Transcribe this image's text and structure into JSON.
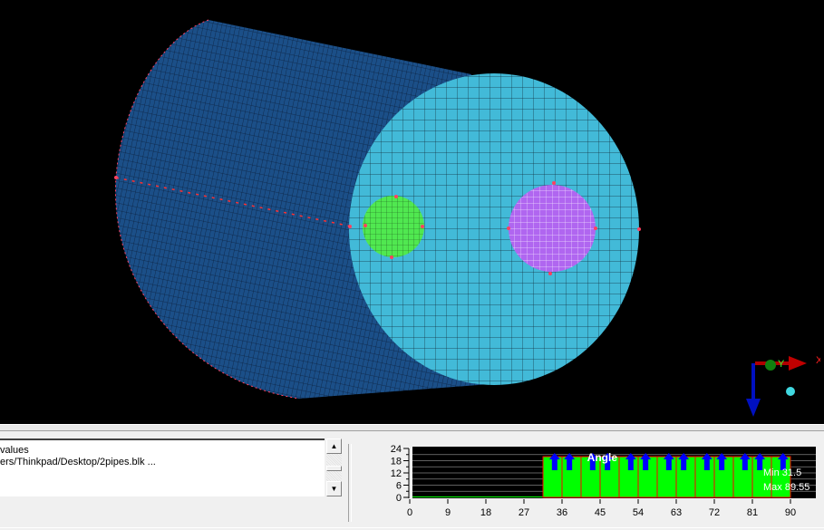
{
  "log": {
    "lines": [
      "values",
      "ers/Thinkpad/Desktop/2pipes.blk ..."
    ]
  },
  "scrollbar": {
    "up": "▲",
    "down": "▼"
  },
  "axes_triad": {
    "x_label": "X",
    "y_label": "Y"
  },
  "colors": {
    "cylinder_side": "#1a4a80",
    "end_face": "#40b8d8",
    "inner_pipe_left": "#50e850",
    "inner_pipe_right": "#b060f0",
    "mesh": "#0a1a30",
    "node": "#ff4040"
  },
  "chart_data": {
    "type": "bar",
    "title": "Angle",
    "xlim": [
      0,
      90
    ],
    "ylim": [
      0,
      24
    ],
    "x_ticks": [
      "0",
      "9",
      "18",
      "27",
      "36",
      "45",
      "54",
      "63",
      "72",
      "81",
      "90"
    ],
    "y_ticks": [
      "0",
      "6",
      "12",
      "18",
      "24"
    ],
    "bins_start": [
      31.5,
      36,
      40.5,
      45,
      49.5,
      54,
      58.5,
      63,
      67.5,
      72,
      76.5,
      81,
      85.5
    ],
    "bin_width": 4.5,
    "values": [
      20,
      20,
      20,
      20,
      20,
      20,
      20,
      20,
      20,
      20,
      20,
      20,
      20
    ],
    "min_label": "Min 31.5",
    "max_label": "Max 89.55",
    "bar_color": "#00ff00",
    "bar_edge": "#ff0000",
    "arrow_color": "#0000ff",
    "grid": true
  }
}
